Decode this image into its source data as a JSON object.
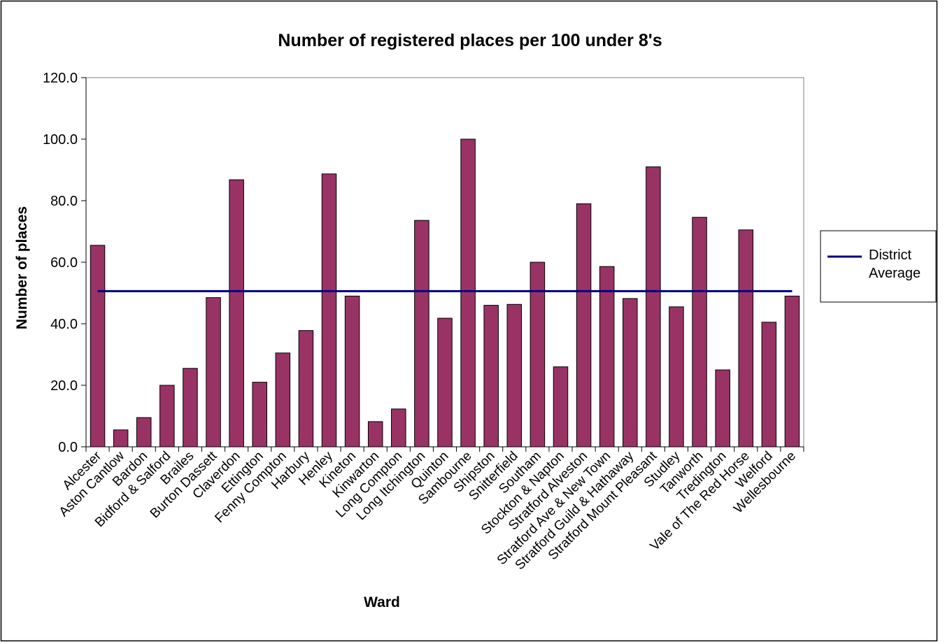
{
  "chart_data": {
    "type": "bar",
    "title": "Number of registered places per 100 under 8's",
    "x_label": "Ward",
    "y_label": "Number of places",
    "categories": [
      "Alcester",
      "Aston Cantlow",
      "Bardon",
      "Bidford & Salford",
      "Brailes",
      "Burton Dassett",
      "Claverdon",
      "Ettington",
      "Fenny Compton",
      "Harbury",
      "Henley",
      "Kineton",
      "Kinwarton",
      "Long Compton",
      "Long Itchington",
      "Quinton",
      "Sambourne",
      "Shipston",
      "Snitterfield",
      "Southam",
      "Stockton & Napton",
      "Stratford Alveston",
      "Stratford Ave & New Town",
      "Stratford Guild & Hathaway",
      "Stratford Mount Pleasant",
      "Studley",
      "Tanworth",
      "Tredington",
      "Vale of The Red Horse",
      "Welford",
      "Wellesbourne"
    ],
    "values": [
      65.5,
      5.5,
      9.5,
      20,
      25.5,
      48.5,
      86.8,
      21,
      30.5,
      37.8,
      88.7,
      49,
      8.2,
      12.3,
      73.6,
      41.8,
      100,
      46,
      46.3,
      60,
      26,
      79,
      58.6,
      48.2,
      91,
      45.5,
      74.6,
      25,
      70.5,
      40.5,
      49
    ],
    "color": "#993366",
    "reference_line": {
      "name": "District Average",
      "value": 50.6,
      "color": "#000080"
    },
    "ylim": [
      0,
      120
    ],
    "yticks": [
      {
        "value": 0,
        "label": "0.0"
      },
      {
        "value": 20,
        "label": "20.0"
      },
      {
        "value": 40,
        "label": "40.0"
      },
      {
        "value": 60,
        "label": "60.0"
      },
      {
        "value": 80,
        "label": "80.0"
      },
      {
        "value": 100,
        "label": "100.0"
      },
      {
        "value": 120,
        "label": "120.0"
      }
    ],
    "legend": "right"
  }
}
